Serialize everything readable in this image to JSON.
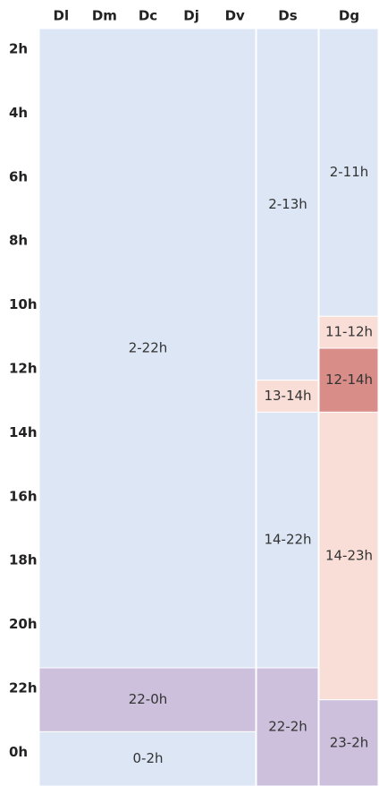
{
  "schedule": {
    "hours": [
      {
        "value": 2,
        "label": "2h"
      },
      {
        "value": 4,
        "label": "4h"
      },
      {
        "value": 6,
        "label": "6h"
      },
      {
        "value": 8,
        "label": "8h"
      },
      {
        "value": 10,
        "label": "10h"
      },
      {
        "value": 12,
        "label": "12h"
      },
      {
        "value": 14,
        "label": "14h"
      },
      {
        "value": 16,
        "label": "16h"
      },
      {
        "value": 18,
        "label": "18h"
      },
      {
        "value": 20,
        "label": "20h"
      },
      {
        "value": 22,
        "label": "22h"
      },
      {
        "value": 24,
        "label": "0h"
      }
    ],
    "groups": [
      {
        "days": [
          "Dl",
          "Dm",
          "Dc",
          "Dj",
          "Dv"
        ],
        "blocks": [
          {
            "label": "2-22h",
            "start": 2,
            "end": 22,
            "color": "#dce6f5"
          },
          {
            "label": "22-0h",
            "start": 22,
            "end": 24,
            "color": "#ccc0dc"
          },
          {
            "label": "0-2h",
            "start": 24,
            "end": 26,
            "color": "#dce6f5"
          }
        ]
      },
      {
        "days": [
          "Ds"
        ],
        "blocks": [
          {
            "label": "2-13h",
            "start": 2,
            "end": 13,
            "color": "#dce6f5"
          },
          {
            "label": "13-14h",
            "start": 13,
            "end": 14,
            "color": "#f8ded6"
          },
          {
            "label": "14-22h",
            "start": 14,
            "end": 22,
            "color": "#dce6f5"
          },
          {
            "label": "22-2h",
            "start": 22,
            "end": 26,
            "color": "#ccc0dc"
          }
        ]
      },
      {
        "days": [
          "Dg"
        ],
        "blocks": [
          {
            "label": "2-11h",
            "start": 2,
            "end": 11,
            "color": "#dce6f5"
          },
          {
            "label": "11-12h",
            "start": 11,
            "end": 12,
            "color": "#f8ded6"
          },
          {
            "label": "12-14h",
            "start": 12,
            "end": 14,
            "color": "#d98d88"
          },
          {
            "label": "14-23h",
            "start": 14,
            "end": 23,
            "color": "#f8ded6"
          },
          {
            "label": "23-2h",
            "start": 23,
            "end": 26,
            "color": "#ccc0dc"
          }
        ]
      }
    ]
  }
}
